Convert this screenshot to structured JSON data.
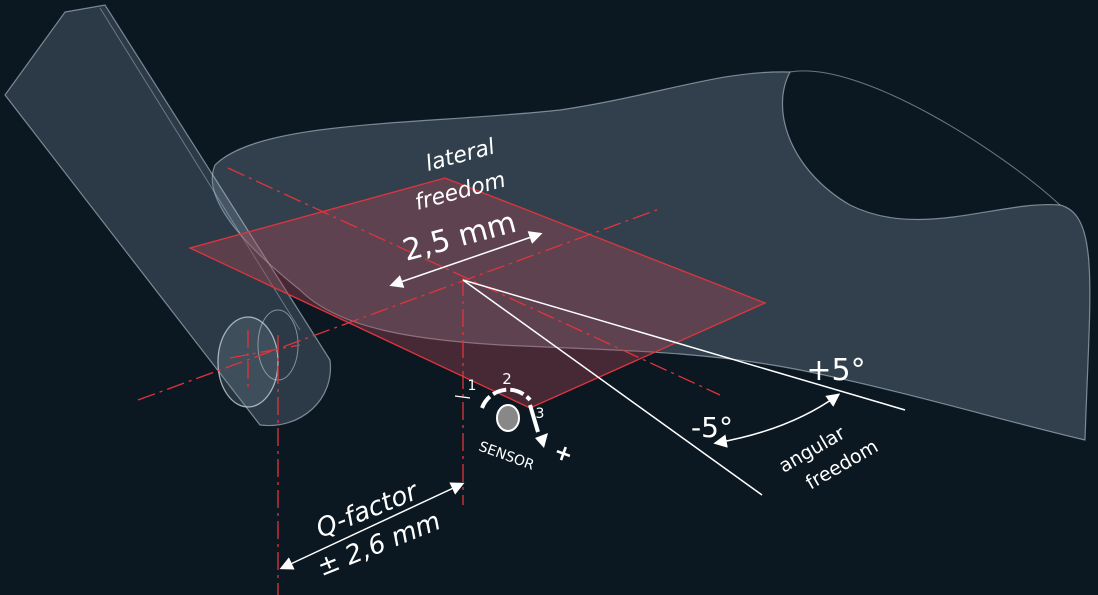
{
  "labels": {
    "lateral_freedom": {
      "line1": "lateral",
      "line2": "freedom",
      "value": "2,5 mm"
    },
    "angular_freedom": {
      "plus": "+5°",
      "minus": "-5°",
      "line1": "angular",
      "line2": "freedom"
    },
    "q_factor": {
      "label": "Q-factor",
      "value": "± 2,6 mm"
    },
    "sensor": {
      "label": "SENSOR",
      "positions": [
        "1",
        "2",
        "3"
      ],
      "direction": "+"
    }
  }
}
